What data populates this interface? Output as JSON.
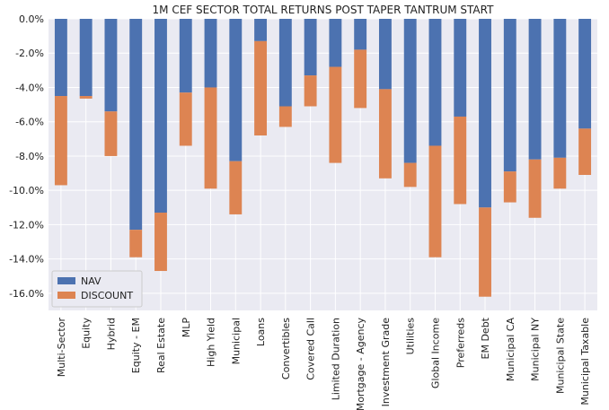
{
  "chart_data": {
    "type": "bar",
    "stacked": true,
    "title": "1M CEF SECTOR TOTAL RETURNS POST TAPER TANTRUM START",
    "xlabel": "",
    "ylabel": "",
    "ylim": [
      -17,
      0
    ],
    "yticks": [
      0,
      -2,
      -4,
      -6,
      -8,
      -10,
      -12,
      -14,
      -16
    ],
    "ytick_labels": [
      "0.0%",
      "-2.0%",
      "-4.0%",
      "-6.0%",
      "-8.0%",
      "-10.0%",
      "-12.0%",
      "-14.0%",
      "-16.0%"
    ],
    "grid": true,
    "legend_position": "lower-left",
    "categories": [
      "Multi-Sector",
      "Equity",
      "Hybrid",
      "Equity - EM",
      "Real Estate",
      "MLP",
      "High Yield",
      "Municipal",
      "Loans",
      "Convertibles",
      "Covered Call",
      "Limited Duration",
      "Mortgage - Agency",
      "Investment Grade",
      "Utilities",
      "Global Income",
      "Preferreds",
      "EM Debt",
      "Municipal CA",
      "Municipal NY",
      "Municipal State",
      "Municipal Taxable"
    ],
    "series": [
      {
        "name": "NAV",
        "color": "#4c72b0",
        "values": [
          -4.5,
          -4.5,
          -5.4,
          -12.3,
          -11.3,
          -4.3,
          -4.0,
          -8.3,
          -1.3,
          -5.1,
          -3.3,
          -2.8,
          -1.8,
          -4.1,
          -8.4,
          -7.4,
          -5.7,
          -11.0,
          -8.9,
          -8.2,
          -8.1,
          -6.4
        ]
      },
      {
        "name": "DISCOUNT",
        "color": "#dd8452",
        "values": [
          -5.2,
          -0.15,
          -2.6,
          -1.6,
          -3.4,
          -3.1,
          -5.9,
          -3.1,
          -5.5,
          -1.2,
          -1.8,
          -5.6,
          -3.4,
          -5.2,
          -1.4,
          -6.5,
          -5.1,
          -5.2,
          -1.8,
          -3.4,
          -1.8,
          -2.7
        ]
      }
    ]
  }
}
